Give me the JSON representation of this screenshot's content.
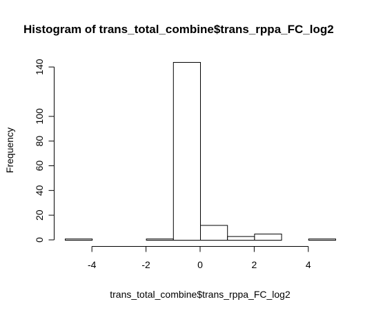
{
  "chart_data": {
    "type": "bar",
    "title": "Histogram of trans_total_combine$trans_rppa_FC_log2",
    "xlabel": "trans_total_combine$trans_rppa_FC_log2",
    "ylabel": "Frequency",
    "bins": [
      {
        "start": -5,
        "end": -4,
        "value": 1
      },
      {
        "start": -4,
        "end": -3,
        "value": 0
      },
      {
        "start": -3,
        "end": -2,
        "value": 0
      },
      {
        "start": -2,
        "end": -1,
        "value": 1
      },
      {
        "start": -1,
        "end": 0,
        "value": 144
      },
      {
        "start": 0,
        "end": 1,
        "value": 12
      },
      {
        "start": 1,
        "end": 2,
        "value": 3
      },
      {
        "start": 2,
        "end": 3,
        "value": 5
      },
      {
        "start": 3,
        "end": 4,
        "value": 0
      },
      {
        "start": 4,
        "end": 5,
        "value": 1
      }
    ],
    "xlim": [
      -5,
      5
    ],
    "ylim": [
      0,
      144
    ],
    "xticks": [
      -4,
      -2,
      0,
      2,
      4
    ],
    "yticks": [
      0,
      20,
      40,
      60,
      80,
      100,
      140
    ]
  }
}
